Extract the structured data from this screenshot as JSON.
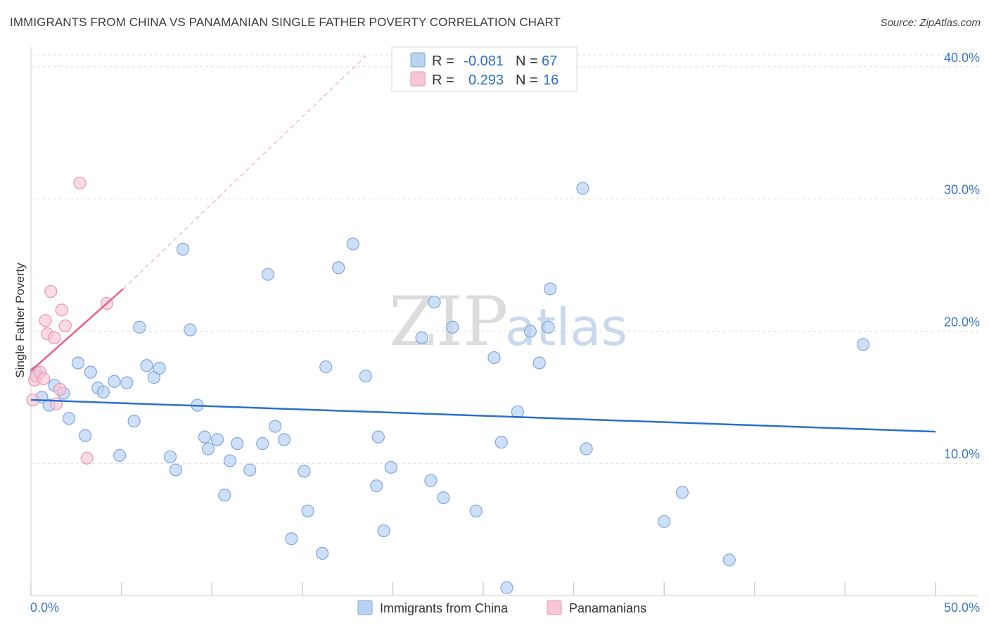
{
  "title": "IMMIGRANTS FROM CHINA VS PANAMANIAN SINGLE FATHER POVERTY CORRELATION CHART",
  "source": "Source: ZipAtlas.com",
  "watermark": {
    "zip": "ZIP",
    "atlas": "atlas"
  },
  "colors": {
    "blue_fill": "#b9d3f3",
    "blue_stroke": "#7fa7de",
    "blue_line": "#2a6fcf",
    "pink_fill": "#f8c6d6",
    "pink_stroke": "#eb95b2",
    "pink_line": "#e8608f",
    "tick_text": "#3b76c4"
  },
  "legend": {
    "rows": [
      {
        "r_label": "R =",
        "r_value": "-0.081",
        "n_label": "N =",
        "n_value": "67"
      },
      {
        "r_label": "R =",
        "r_value": "0.293",
        "n_label": "N =",
        "n_value": "16"
      }
    ]
  },
  "bottom_legend": {
    "series1": "Immigrants from China",
    "series2": "Panamanians"
  },
  "chart_data": {
    "type": "scatter",
    "xlabel": "",
    "ylabel": "Single Father Poverty",
    "xlim": [
      0,
      50
    ],
    "ylim": [
      0,
      41
    ],
    "x_tick_labels": [
      "0.0%",
      "50.0%"
    ],
    "y_ticks": [
      10,
      20,
      30,
      40
    ],
    "y_tick_labels": [
      "10.0%",
      "20.0%",
      "30.0%",
      "40.0%"
    ],
    "grid": true,
    "series": [
      {
        "name": "Immigrants from China",
        "points": [
          [
            0.3,
            16.9
          ],
          [
            0.6,
            15.0
          ],
          [
            1.0,
            14.4
          ],
          [
            1.3,
            15.9
          ],
          [
            1.8,
            15.3
          ],
          [
            2.1,
            13.4
          ],
          [
            2.6,
            17.6
          ],
          [
            3.0,
            12.1
          ],
          [
            3.3,
            16.9
          ],
          [
            3.7,
            15.7
          ],
          [
            4.0,
            15.4
          ],
          [
            4.6,
            16.2
          ],
          [
            4.9,
            10.6
          ],
          [
            5.3,
            16.1
          ],
          [
            5.7,
            13.2
          ],
          [
            6.0,
            20.3
          ],
          [
            6.4,
            17.4
          ],
          [
            6.8,
            16.5
          ],
          [
            7.1,
            17.2
          ],
          [
            7.7,
            10.5
          ],
          [
            8.0,
            9.5
          ],
          [
            8.4,
            26.2
          ],
          [
            8.8,
            20.1
          ],
          [
            9.2,
            14.4
          ],
          [
            9.6,
            12.0
          ],
          [
            9.8,
            11.1
          ],
          [
            10.3,
            11.8
          ],
          [
            10.7,
            7.6
          ],
          [
            11.0,
            10.2
          ],
          [
            11.4,
            11.5
          ],
          [
            12.1,
            9.5
          ],
          [
            12.8,
            11.5
          ],
          [
            13.1,
            24.3
          ],
          [
            13.5,
            12.8
          ],
          [
            14.0,
            11.8
          ],
          [
            14.4,
            4.3
          ],
          [
            15.1,
            9.4
          ],
          [
            15.3,
            6.4
          ],
          [
            16.1,
            3.2
          ],
          [
            16.3,
            17.3
          ],
          [
            17.0,
            24.8
          ],
          [
            17.8,
            26.6
          ],
          [
            18.5,
            16.6
          ],
          [
            19.1,
            8.3
          ],
          [
            19.2,
            12.0
          ],
          [
            19.5,
            4.9
          ],
          [
            19.9,
            9.7
          ],
          [
            21.6,
            19.5
          ],
          [
            22.1,
            8.7
          ],
          [
            22.3,
            22.2
          ],
          [
            22.8,
            7.4
          ],
          [
            23.3,
            20.3
          ],
          [
            24.6,
            6.4
          ],
          [
            25.6,
            18.0
          ],
          [
            26.0,
            11.6
          ],
          [
            26.3,
            0.6
          ],
          [
            26.9,
            13.9
          ],
          [
            27.6,
            20.0
          ],
          [
            28.1,
            17.6
          ],
          [
            28.6,
            20.3
          ],
          [
            28.7,
            23.2
          ],
          [
            30.5,
            30.8
          ],
          [
            30.7,
            11.1
          ],
          [
            35.0,
            5.6
          ],
          [
            36.0,
            7.8
          ],
          [
            38.6,
            2.7
          ],
          [
            46.0,
            19.0
          ]
        ],
        "trend": {
          "x0": 0,
          "y0": 14.8,
          "x1": 50,
          "y1": 12.4
        }
      },
      {
        "name": "Panamanians",
        "points": [
          [
            0.1,
            14.8
          ],
          [
            0.2,
            16.3
          ],
          [
            0.3,
            16.6
          ],
          [
            0.5,
            16.9
          ],
          [
            0.7,
            16.4
          ],
          [
            0.8,
            20.8
          ],
          [
            0.9,
            19.8
          ],
          [
            1.1,
            23.0
          ],
          [
            1.3,
            19.5
          ],
          [
            1.4,
            14.5
          ],
          [
            1.6,
            15.6
          ],
          [
            1.7,
            21.6
          ],
          [
            1.9,
            20.4
          ],
          [
            2.7,
            31.2
          ],
          [
            3.1,
            10.4
          ],
          [
            4.2,
            22.1
          ]
        ],
        "trend": {
          "x0": 0,
          "y0": 17.0,
          "x1": 5.1,
          "y1": 23.2
        },
        "trend_extended": {
          "x0": 5.1,
          "y0": 23.2,
          "x1": 18.5,
          "y1": 40.8
        }
      }
    ]
  }
}
